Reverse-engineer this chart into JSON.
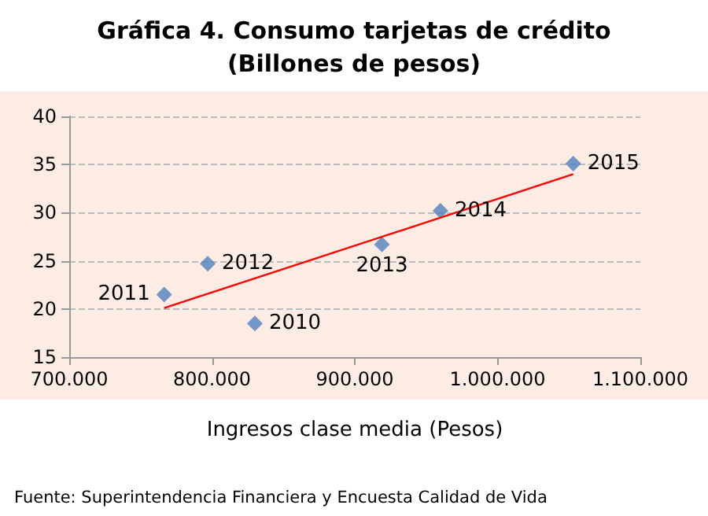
{
  "chart_data": {
    "type": "scatter",
    "title": "Gráfica 4. Consumo tarjetas de crédito\n(Billones de pesos)",
    "xlabel": "Ingresos clase media (Pesos)",
    "annotations": [
      "Fuente: Superintendencia Financiera y Encuesta Calidad de Vida",
      {
        "text": "2010",
        "x": 830000,
        "y": 18.5
      },
      {
        "text": "2011",
        "x": 766500,
        "y": 21.5
      },
      {
        "text": "2012",
        "x": 797000,
        "y": 24.7
      },
      {
        "text": "2013",
        "x": 919000,
        "y": 26.7
      },
      {
        "text": "2014",
        "x": 960000,
        "y": 30.2
      },
      {
        "text": "2015",
        "x": 1053000,
        "y": 35.1
      }
    ],
    "series": [
      {
        "color": "#4f81bd",
        "marker": "diamond",
        "x": [
          830000,
          766500,
          797000,
          919000,
          960000,
          1053000
        ],
        "values": [
          18.5,
          21.5,
          24.7,
          26.7,
          30.2,
          35.1
        ]
      },
      {
        "type": "line",
        "color": "#ff0000",
        "marker": "none",
        "x": [
          766500,
          1053000
        ],
        "values": [
          20.1,
          34.0
        ]
      }
    ],
    "xlim": [
      700000,
      1100000
    ],
    "xticks": [
      {
        "value": 700000,
        "label": "700.000"
      },
      {
        "value": 800000,
        "label": "800.000"
      },
      {
        "value": 900000,
        "label": "900.000"
      },
      {
        "value": 1000000,
        "label": "1.000.000"
      },
      {
        "value": 1100000,
        "label": "1.100.000"
      }
    ],
    "ylim": [
      15,
      40
    ],
    "yticks": [
      15,
      20,
      25,
      30,
      35,
      40
    ],
    "grid": "y"
  }
}
